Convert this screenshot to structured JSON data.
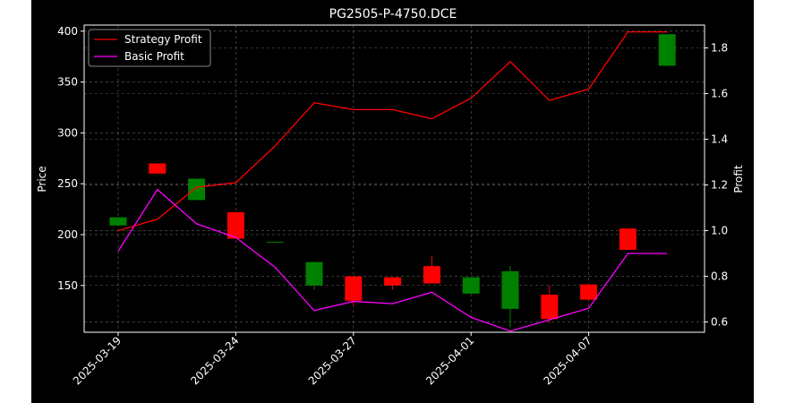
{
  "chart_data": {
    "type": "candlestick",
    "title": "PG2505-P-4750.DCE",
    "xlabel": "",
    "ylabel": "Price",
    "ylabel_right": "Profit",
    "ylim": [
      104,
      406
    ],
    "ylim_right": [
      0.555,
      1.9
    ],
    "yticks": [
      150,
      200,
      250,
      300,
      350,
      400
    ],
    "yticks_right": [
      0.6,
      0.8,
      1.0,
      1.2,
      1.4,
      1.6,
      1.8
    ],
    "yticks_right_labels": [
      "0.6",
      "0.8",
      "1.0",
      "1.2",
      "1.4",
      "1.6",
      "1.8"
    ],
    "xticks": [
      "2025-03-19",
      "2025-03-24",
      "2025-03-27",
      "2025-04-01",
      "2025-04-07"
    ],
    "xtick_index": [
      0,
      3,
      6,
      9,
      12
    ],
    "grid": true,
    "legend_position": "upper left",
    "colors": {
      "background": "#000000",
      "up": "#008000",
      "down": "#ff0000",
      "strategy": "#ff0000",
      "basic": "#ff00ff",
      "grid": "#b0b0b0"
    },
    "candles": [
      {
        "date": "2025-03-19",
        "open": 209,
        "close": 217,
        "high": 217,
        "low": 209
      },
      {
        "date": "2025-03-20",
        "open": 270,
        "close": 260,
        "high": 270,
        "low": 260
      },
      {
        "date": "2025-03-21",
        "open": 234,
        "close": 255,
        "high": 255,
        "low": 234
      },
      {
        "date": "2025-03-24",
        "open": 222,
        "close": 196,
        "high": 222,
        "low": 196
      },
      {
        "date": "2025-03-25",
        "open": 193,
        "close": 193,
        "high": 193,
        "low": 193
      },
      {
        "date": "2025-03-26",
        "open": 150,
        "close": 173,
        "high": 173,
        "low": 146
      },
      {
        "date": "2025-03-27",
        "open": 159,
        "close": 135,
        "high": 159,
        "low": 130
      },
      {
        "date": "2025-03-28",
        "open": 158,
        "close": 150,
        "high": 158,
        "low": 146
      },
      {
        "date": "2025-03-31",
        "open": 169,
        "close": 152,
        "high": 179,
        "low": 152
      },
      {
        "date": "2025-04-01",
        "open": 142,
        "close": 158,
        "high": 158,
        "low": 142
      },
      {
        "date": "2025-04-02",
        "open": 127,
        "close": 164,
        "high": 169,
        "low": 109
      },
      {
        "date": "2025-04-03",
        "open": 141,
        "close": 117,
        "high": 150,
        "low": 113
      },
      {
        "date": "2025-04-07",
        "open": 151,
        "close": 136,
        "high": 151,
        "low": 136
      },
      {
        "date": "2025-04-08",
        "open": 206,
        "close": 185,
        "high": 206,
        "low": 185
      },
      {
        "date": "2025-04-09",
        "open": 366,
        "close": 397,
        "high": 397,
        "low": 366
      }
    ],
    "series": [
      {
        "name": "Strategy Profit",
        "axis": "right",
        "values": [
          1.0,
          1.05,
          1.19,
          1.21,
          1.37,
          1.56,
          1.53,
          1.53,
          1.49,
          1.58,
          1.74,
          1.57,
          1.62,
          1.87,
          1.87
        ]
      },
      {
        "name": "Basic Profit",
        "axis": "right",
        "values": [
          0.91,
          1.18,
          1.03,
          0.97,
          0.84,
          0.65,
          0.69,
          0.68,
          0.73,
          0.62,
          0.56,
          0.61,
          0.66,
          0.9,
          0.9
        ]
      }
    ]
  }
}
